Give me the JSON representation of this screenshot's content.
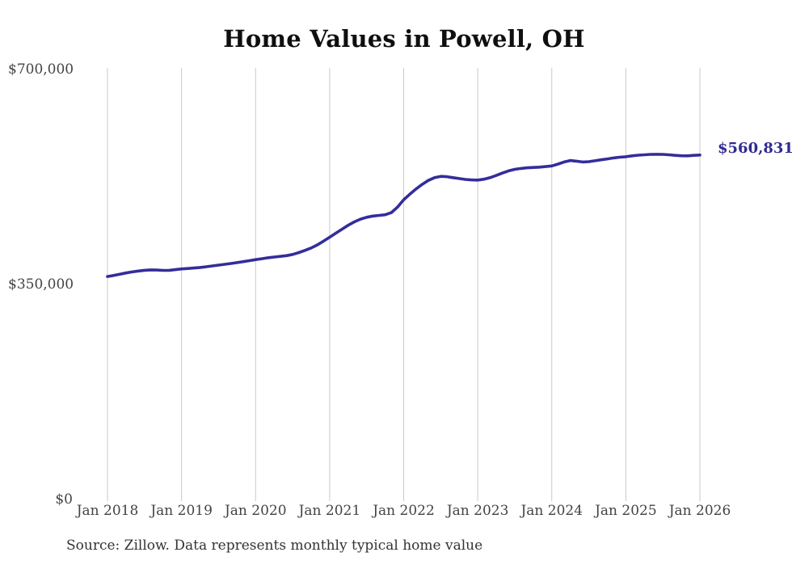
{
  "title": "Home Values in Powell, OH",
  "source_note": "Source: Zillow. Data represents monthly typical home value",
  "end_label": "$560,831",
  "colors": {
    "line": "#332d9b",
    "end_label": "#2f2a93",
    "grid": "#c9c9c9",
    "title_text": "#0f0f0f",
    "axis_text": "#434343",
    "source_text": "#333333",
    "background": "#ffffff"
  },
  "chart_data": {
    "type": "line",
    "title": "Home Values in Powell, OH",
    "xlabel": "",
    "ylabel": "",
    "x_range_note": "monthly points from Jan 2018 through Jan 2026",
    "x_tick_labels": [
      "Jan 2018",
      "Jan 2019",
      "Jan 2020",
      "Jan 2021",
      "Jan 2022",
      "Jan 2023",
      "Jan 2024",
      "Jan 2025",
      "Jan 2026"
    ],
    "y_tick_labels": [
      "$0",
      "$350,000",
      "$700,000"
    ],
    "y_tick_values": [
      0,
      350000,
      700000
    ],
    "ylim": [
      0,
      700000
    ],
    "grid": "vertical-only",
    "legend": "none",
    "series": [
      {
        "name": "Typical home value",
        "final_value": 560831,
        "final_value_label": "$560,831",
        "values": [
          363000,
          364800,
          366800,
          368800,
          370500,
          372000,
          373200,
          373800,
          373500,
          373000,
          373200,
          374200,
          375400,
          376000,
          376800,
          377800,
          379000,
          380300,
          381600,
          382900,
          384200,
          385600,
          387200,
          388800,
          390500,
          392000,
          393500,
          394800,
          395800,
          397000,
          399000,
          402000,
          405500,
          409500,
          414500,
          420500,
          427000,
          433500,
          440000,
          446500,
          452000,
          456500,
          459500,
          461500,
          462500,
          463500,
          467000,
          476000,
          488000,
          497000,
          505500,
          513000,
          519500,
          524000,
          526000,
          525500,
          524000,
          522500,
          521000,
          520200,
          520000,
          521500,
          524000,
          527500,
          531500,
          535000,
          537500,
          539000,
          540000,
          540500,
          541000,
          542000,
          543000,
          546000,
          549500,
          551800,
          550800,
          549500,
          550000,
          551500,
          553000,
          554500,
          556000,
          557200,
          558000,
          559500,
          560500,
          561200,
          561800,
          562000,
          561800,
          561200,
          560300,
          559600,
          559500,
          560200,
          560831
        ]
      }
    ]
  }
}
